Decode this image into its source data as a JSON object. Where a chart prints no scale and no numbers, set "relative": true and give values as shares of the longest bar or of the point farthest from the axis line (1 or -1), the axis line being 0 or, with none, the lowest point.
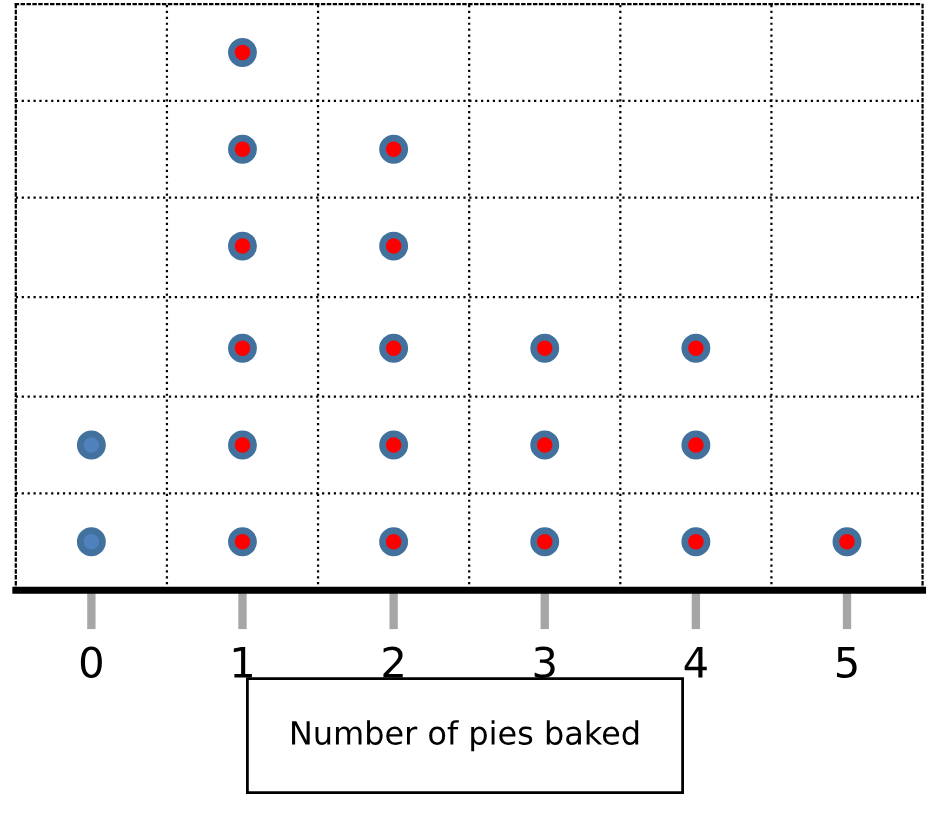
{
  "chart_data": {
    "type": "scatter",
    "relative": true,
    "xlabel": "Number of pies baked",
    "categories": [
      "0",
      "1",
      "2",
      "3",
      "4",
      "5"
    ],
    "series": [
      {
        "color": "#4f81bd",
        "x": [
          "0",
          "0"
        ],
        "values": [
          0.09,
          0.27
        ]
      },
      {
        "color": "#ff0000",
        "x": [
          "1",
          "1",
          "1",
          "1",
          "1",
          "1",
          "2",
          "2",
          "2",
          "2",
          "2",
          "3",
          "3",
          "3",
          "4",
          "4",
          "4",
          "5"
        ],
        "values": [
          0.09,
          0.27,
          0.45,
          0.64,
          0.82,
          1,
          0.09,
          0.27,
          0.45,
          0.64,
          0.82,
          0.09,
          0.27,
          0.45,
          0.09,
          0.27,
          0.45,
          0.09
        ]
      }
    ],
    "marker": "circle",
    "grid": true,
    "tick_labels": "x"
  }
}
